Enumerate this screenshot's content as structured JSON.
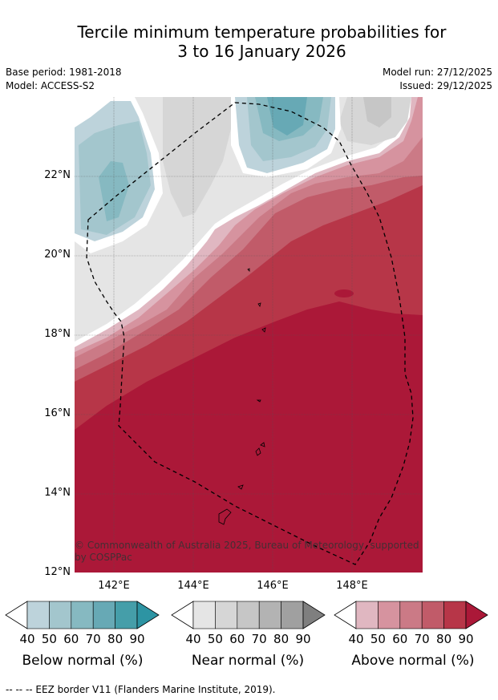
{
  "title_line1": "Tercile minimum temperature probabilities for",
  "title_line2": "3 to 16 January 2026",
  "base_period": "Base period: 1981-2018",
  "model": "Model: ACCESS-S2",
  "model_run": "Model run: 27/12/2025",
  "issued": "Issued: 29/12/2025",
  "copyright_line1": "© Commonwealth of Australia 2025, Bureau of Meteorology, supported",
  "copyright_line2": "by COSPPac",
  "y_ticks": [
    "22°N",
    "20°N",
    "18°N",
    "16°N",
    "14°N",
    "12°N"
  ],
  "x_ticks": [
    "142°E",
    "144°E",
    "146°E",
    "148°E"
  ],
  "colorbars": [
    {
      "title": "Below normal (%)",
      "labels": [
        "40",
        "50",
        "60",
        "70",
        "80",
        "90"
      ],
      "colors": [
        "#bdd3db",
        "#a3c6cd",
        "#86b9c1",
        "#67a9b5",
        "#459ea9",
        "#2d94a3"
      ]
    },
    {
      "title": "Near normal (%)",
      "labels": [
        "40",
        "50",
        "60",
        "70",
        "80",
        "90"
      ],
      "colors": [
        "#e5e5e5",
        "#d6d6d6",
        "#c6c6c6",
        "#b3b3b3",
        "#a0a0a0",
        "#7f7f7f"
      ]
    },
    {
      "title": "Above normal (%)",
      "labels": [
        "40",
        "50",
        "60",
        "70",
        "80",
        "90"
      ],
      "colors": [
        "#e0b7c1",
        "#d6939f",
        "#cb7a86",
        "#c15b69",
        "#b73648",
        "#ab1838"
      ]
    }
  ],
  "footer": "--  --  -- EEZ border V11 (Flanders Marine Institute, 2019)."
}
